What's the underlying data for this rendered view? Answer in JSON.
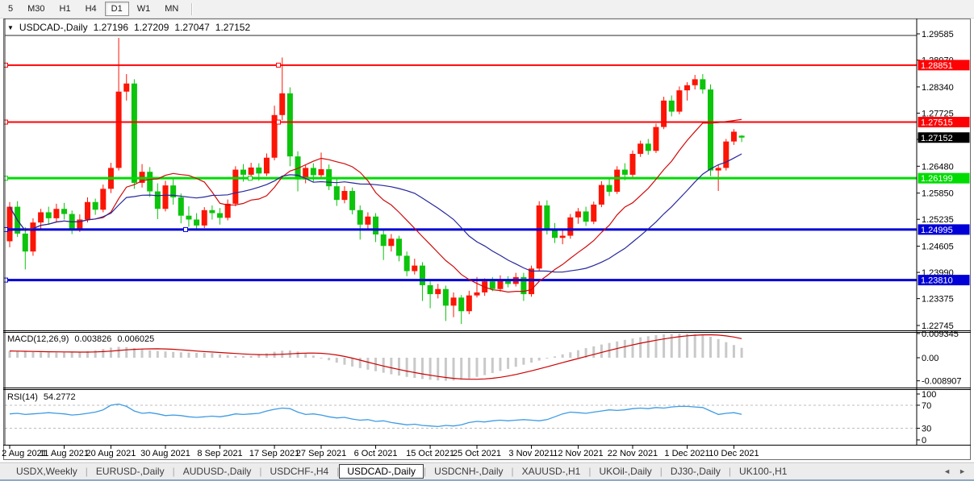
{
  "toolbar": {
    "timeframes": [
      "5",
      "M30",
      "H1",
      "H4",
      "D1",
      "W1",
      "MN"
    ],
    "active": "D1"
  },
  "window_title": {
    "symbol": "USDCAD-,Daily",
    "open": "1.27196",
    "high": "1.27209",
    "low": "1.27047",
    "close": "1.27152"
  },
  "colors": {
    "bull": "#fb1505",
    "bear": "#0cc40c",
    "hline_red": "#fd0205",
    "hline_green": "#00dc02",
    "hline_blue": "#0100d6",
    "ma_fast": "#cf0a0a",
    "ma_slow": "#26269c",
    "macd_hist": "#c9c9c9",
    "macd_signal": "#cc0000",
    "rsi_line": "#3e9be4",
    "rsi_level": "#bcbcbc",
    "tag_current": "#000000",
    "axis_text": "#000000"
  },
  "chart_data": {
    "type": "candlestick",
    "symbol": "USDCAD-",
    "timeframe": "Daily",
    "ylim": [
      1.2263,
      1.2962
    ],
    "y_ticks": [
      "1.29585",
      "1.28970",
      "1.28340",
      "1.27725",
      "1.27110",
      "1.26480",
      "1.25850",
      "1.25235",
      "1.24605",
      "1.23990",
      "1.23375",
      "1.22745"
    ],
    "x_labels": [
      "2 Aug 2021",
      "11 Aug 2021",
      "20 Aug 2021",
      "30 Aug 2021",
      "8 Sep 2021",
      "17 Sep 2021",
      "27 Sep 2021",
      "6 Oct 2021",
      "15 Oct 2021",
      "25 Oct 2021",
      "3 Nov 2021",
      "12 Nov 2021",
      "22 Nov 2021",
      "1 Dec 2021",
      "10 Dec 2021"
    ],
    "x_label_indices": [
      0,
      7,
      13,
      20,
      27,
      34,
      40,
      47,
      54,
      60,
      67,
      73,
      80,
      87,
      93
    ],
    "current_price": {
      "label": "1.27152",
      "value": 1.27152
    },
    "hlines": [
      {
        "price": 1.28851,
        "label": "1.28851",
        "color": "#fd0205",
        "width": 2,
        "handles": [
          7,
          345
        ]
      },
      {
        "price": 1.27515,
        "label": "1.27515",
        "color": "#fd0205",
        "width": 2,
        "handles": [
          7,
          345
        ]
      },
      {
        "price": 1.26199,
        "label": "1.26199",
        "color": "#00dc02",
        "width": 3,
        "handles": [
          7,
          310
        ]
      },
      {
        "price": 1.24995,
        "label": "1.24995",
        "color": "#0100d6",
        "width": 3,
        "handles": [
          7,
          230
        ]
      },
      {
        "price": 1.2381,
        "label": "1.23810",
        "color": "#0100d6",
        "width": 3,
        "handles": [
          7
        ]
      }
    ],
    "ma": [
      {
        "name": "ma-fast",
        "period": 12,
        "color": "#cf0a0a"
      },
      {
        "name": "ma-slow",
        "period": 24,
        "color": "#26269c"
      }
    ],
    "candles": [
      [
        1.2472,
        1.2564,
        1.2458,
        1.2553
      ],
      [
        1.2553,
        1.2566,
        1.2482,
        1.249
      ],
      [
        1.249,
        1.2505,
        1.2406,
        1.2448
      ],
      [
        1.2448,
        1.2526,
        1.2438,
        1.2516
      ],
      [
        1.2516,
        1.2548,
        1.2502,
        1.254
      ],
      [
        1.254,
        1.2553,
        1.2512,
        1.2526
      ],
      [
        1.2526,
        1.256,
        1.2518,
        1.2548
      ],
      [
        1.2548,
        1.2562,
        1.2523,
        1.2536
      ],
      [
        1.2536,
        1.2544,
        1.2489,
        1.2501
      ],
      [
        1.2501,
        1.2535,
        1.2494,
        1.2523
      ],
      [
        1.2523,
        1.2575,
        1.2516,
        1.2564
      ],
      [
        1.2564,
        1.2572,
        1.2534,
        1.2546
      ],
      [
        1.2546,
        1.2605,
        1.254,
        1.2595
      ],
      [
        1.2595,
        1.2656,
        1.2585,
        1.2644
      ],
      [
        1.2644,
        1.2949,
        1.2638,
        1.2823
      ],
      [
        1.2823,
        1.2864,
        1.2802,
        1.2842
      ],
      [
        1.2842,
        1.2852,
        1.2595,
        1.2609
      ],
      [
        1.2609,
        1.2653,
        1.2598,
        1.2635
      ],
      [
        1.2635,
        1.2646,
        1.2576,
        1.2589
      ],
      [
        1.2589,
        1.2608,
        1.2524,
        1.2548
      ],
      [
        1.2548,
        1.2614,
        1.2542,
        1.2603
      ],
      [
        1.2603,
        1.2618,
        1.2558,
        1.2575
      ],
      [
        1.2575,
        1.2584,
        1.2514,
        1.2532
      ],
      [
        1.2532,
        1.2554,
        1.2506,
        1.2523
      ],
      [
        1.2523,
        1.2538,
        1.25,
        1.2509
      ],
      [
        1.2509,
        1.2552,
        1.2503,
        1.2545
      ],
      [
        1.2545,
        1.2556,
        1.2523,
        1.2538
      ],
      [
        1.2538,
        1.255,
        1.2511,
        1.2527
      ],
      [
        1.2527,
        1.257,
        1.2521,
        1.256
      ],
      [
        1.256,
        1.2648,
        1.2554,
        1.264
      ],
      [
        1.264,
        1.2653,
        1.2612,
        1.2628
      ],
      [
        1.2628,
        1.2656,
        1.2619,
        1.2645
      ],
      [
        1.2645,
        1.2655,
        1.2614,
        1.2631
      ],
      [
        1.2631,
        1.2678,
        1.2625,
        1.2668
      ],
      [
        1.2668,
        1.279,
        1.2662,
        1.2768
      ],
      [
        1.2768,
        1.2903,
        1.2756,
        1.2819
      ],
      [
        1.2819,
        1.2833,
        1.2648,
        1.2671
      ],
      [
        1.2671,
        1.2683,
        1.2589,
        1.2617
      ],
      [
        1.2617,
        1.2652,
        1.2608,
        1.2644
      ],
      [
        1.2644,
        1.2655,
        1.2612,
        1.2627
      ],
      [
        1.2627,
        1.268,
        1.2621,
        1.2641
      ],
      [
        1.2641,
        1.2652,
        1.2592,
        1.2601
      ],
      [
        1.2601,
        1.2618,
        1.2555,
        1.2569
      ],
      [
        1.2569,
        1.2601,
        1.2561,
        1.259
      ],
      [
        1.259,
        1.2598,
        1.2535,
        1.2545
      ],
      [
        1.2545,
        1.2556,
        1.2476,
        1.2511
      ],
      [
        1.2511,
        1.254,
        1.2501,
        1.253
      ],
      [
        1.253,
        1.2538,
        1.247,
        1.2488
      ],
      [
        1.2488,
        1.25,
        1.2428,
        1.2461
      ],
      [
        1.2461,
        1.2489,
        1.2448,
        1.2478
      ],
      [
        1.2478,
        1.2485,
        1.2425,
        1.2438
      ],
      [
        1.2438,
        1.2448,
        1.239,
        1.2402
      ],
      [
        1.2402,
        1.2431,
        1.2394,
        1.2415
      ],
      [
        1.2415,
        1.2423,
        1.2332,
        1.2369
      ],
      [
        1.2369,
        1.2378,
        1.2315,
        1.2348
      ],
      [
        1.2348,
        1.2372,
        1.2338,
        1.236
      ],
      [
        1.236,
        1.2368,
        1.2285,
        1.2321
      ],
      [
        1.2321,
        1.2352,
        1.2294,
        1.234
      ],
      [
        1.234,
        1.2346,
        1.2278,
        1.2308
      ],
      [
        1.2308,
        1.2356,
        1.2301,
        1.2345
      ],
      [
        1.2345,
        1.2388,
        1.234,
        1.2352
      ],
      [
        1.2352,
        1.2385,
        1.2344,
        1.2378
      ],
      [
        1.2378,
        1.2388,
        1.2355,
        1.236
      ],
      [
        1.236,
        1.2392,
        1.2354,
        1.2382
      ],
      [
        1.2382,
        1.239,
        1.2364,
        1.2372
      ],
      [
        1.2372,
        1.2398,
        1.2366,
        1.2388
      ],
      [
        1.2388,
        1.2398,
        1.2332,
        1.2348
      ],
      [
        1.2348,
        1.2415,
        1.2342,
        1.2408
      ],
      [
        1.2408,
        1.2566,
        1.2402,
        1.2556
      ],
      [
        1.2556,
        1.2568,
        1.2488,
        1.25
      ],
      [
        1.25,
        1.2515,
        1.2468,
        1.248
      ],
      [
        1.248,
        1.2498,
        1.2465,
        1.2485
      ],
      [
        1.2485,
        1.2536,
        1.2478,
        1.2528
      ],
      [
        1.2528,
        1.255,
        1.2513,
        1.2542
      ],
      [
        1.2542,
        1.2553,
        1.2508,
        1.2518
      ],
      [
        1.2518,
        1.2565,
        1.2512,
        1.2558
      ],
      [
        1.2558,
        1.2613,
        1.2552,
        1.2604
      ],
      [
        1.2604,
        1.2618,
        1.2578,
        1.2588
      ],
      [
        1.2588,
        1.2648,
        1.2583,
        1.264
      ],
      [
        1.264,
        1.2655,
        1.2615,
        1.2628
      ],
      [
        1.2628,
        1.2685,
        1.2623,
        1.2677
      ],
      [
        1.2677,
        1.2708,
        1.267,
        1.2701
      ],
      [
        1.2701,
        1.2712,
        1.2675,
        1.2684
      ],
      [
        1.2684,
        1.2748,
        1.2679,
        1.274
      ],
      [
        1.274,
        1.2811,
        1.2735,
        1.2802
      ],
      [
        1.2802,
        1.2814,
        1.2765,
        1.2776
      ],
      [
        1.2776,
        1.2835,
        1.277,
        1.2826
      ],
      [
        1.2826,
        1.2845,
        1.2802,
        1.2838
      ],
      [
        1.2838,
        1.2862,
        1.2828,
        1.2852
      ],
      [
        1.2852,
        1.2864,
        1.2818,
        1.2828
      ],
      [
        1.2828,
        1.284,
        1.2625,
        1.2638
      ],
      [
        1.2638,
        1.2652,
        1.259,
        1.2644
      ],
      [
        1.2644,
        1.2712,
        1.2638,
        1.2706
      ],
      [
        1.2706,
        1.2735,
        1.2698,
        1.2729
      ],
      [
        1.27196,
        1.27209,
        1.27047,
        1.27152
      ]
    ],
    "macd": {
      "label": "MACD(12,26,9)",
      "value": "0.003826",
      "signal_value": "0.006025",
      "y_ticks": [
        "0.009345",
        "0.00",
        "-0.008907"
      ],
      "y_tick_values": [
        0.009345,
        0,
        -0.008907
      ],
      "histogram": [
        0.0026,
        0.0025,
        0.0024,
        0.00225,
        0.0021,
        0.002,
        0.002,
        0.00205,
        0.0021,
        0.0022,
        0.0025,
        0.0029,
        0.0034,
        0.0039,
        0.0042,
        0.0041,
        0.0037,
        0.0033,
        0.0029,
        0.0026,
        0.0024,
        0.00225,
        0.0021,
        0.002,
        0.0019,
        0.00185,
        0.0018,
        0.0013,
        0.0009,
        0.0007,
        0.0006,
        0.0007,
        0.0011,
        0.0017,
        0.0023,
        0.0027,
        0.0028,
        0.0024,
        0.0017,
        0.0008,
        -0.0002,
        -0.001,
        -0.0019,
        -0.0027,
        -0.0034,
        -0.004,
        -0.0046,
        -0.0052,
        -0.0058,
        -0.0064,
        -0.0069,
        -0.0074,
        -0.0078,
        -0.0082,
        -0.0085,
        -0.00875,
        -0.0089,
        -0.0088,
        -0.0085,
        -0.008,
        -0.0074,
        -0.0067,
        -0.0059,
        -0.0051,
        -0.0043,
        -0.0035,
        -0.0027,
        -0.0019,
        -0.0011,
        -0.0003,
        0.0005,
        0.0013,
        0.0021,
        0.0029,
        0.0037,
        0.0044,
        0.0051,
        0.0057,
        0.0063,
        0.0069,
        0.0074,
        0.0079,
        0.0083,
        0.0087,
        0.009,
        0.0092,
        0.00934,
        0.0093,
        0.0091,
        0.0087,
        0.0081,
        0.0072,
        0.006,
        0.0049,
        0.003826
      ]
    },
    "rsi": {
      "label": "RSI(14)",
      "value": "54.2772",
      "levels": [
        70,
        30
      ],
      "y_ticks": [
        "100",
        "70",
        "30",
        "0"
      ],
      "y_tick_values": [
        100,
        70,
        30,
        0
      ],
      "values": [
        55,
        56,
        54,
        55,
        56,
        57,
        56,
        55,
        53,
        54,
        56,
        58,
        62,
        70,
        72,
        68,
        60,
        56,
        57,
        55,
        52,
        53,
        52,
        50,
        49,
        50,
        51,
        50,
        52,
        55,
        54,
        55,
        56,
        60,
        63,
        65,
        64,
        58,
        54,
        55,
        53,
        50,
        48,
        49,
        46,
        44,
        45,
        42,
        43,
        40,
        38,
        36,
        37,
        35,
        34,
        33,
        35,
        34,
        36,
        40,
        42,
        41,
        43,
        44,
        43,
        44,
        45,
        44,
        43,
        45,
        50,
        55,
        58,
        57,
        56,
        58,
        60,
        62,
        61,
        62,
        64,
        65,
        64,
        66,
        65,
        67,
        68,
        68,
        67,
        66,
        60,
        54,
        56,
        57,
        54.28
      ]
    }
  },
  "tabs": {
    "items": [
      {
        "label": "USDX,Weekly",
        "active": false
      },
      {
        "label": "EURUSD-,Daily",
        "active": false
      },
      {
        "label": "AUDUSD-,Daily",
        "active": false
      },
      {
        "label": "USDCHF-,H4",
        "active": false
      },
      {
        "label": "USDCAD-,Daily",
        "active": true
      },
      {
        "label": "USDCNH-,Daily",
        "active": false
      },
      {
        "label": "XAUUSD-,H1",
        "active": false
      },
      {
        "label": "UKOil-,Daily",
        "active": false
      },
      {
        "label": "DJ30-,Daily",
        "active": false
      },
      {
        "label": "UK100-,H1",
        "active": false
      }
    ],
    "scroll_left": "◄",
    "scroll_right": "►"
  }
}
